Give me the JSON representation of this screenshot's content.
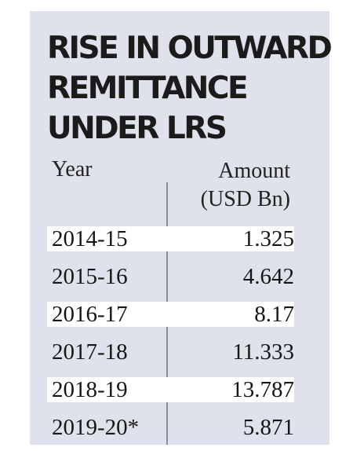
{
  "chart_data": {
    "type": "table",
    "title_lines": [
      "RISE IN OUTWARD",
      "REMITTANCE",
      "UNDER LRS"
    ],
    "columns": [
      "Year",
      [
        "Amount",
        "(USD Bn)"
      ]
    ],
    "rows": [
      {
        "year": "2014-15",
        "amount": "1.325"
      },
      {
        "year": "2015-16",
        "amount": "4.642"
      },
      {
        "year": "2016-17",
        "amount": "8.17"
      },
      {
        "year": "2017-18",
        "amount": "11.333"
      },
      {
        "year": "2018-19",
        "amount": "13.787"
      },
      {
        "year": "2019-20*",
        "amount": "5.871"
      }
    ]
  },
  "colors": {
    "card_background": "#dfe2ea",
    "row_highlight": "#ffffff",
    "text": "#1a1a1a"
  }
}
